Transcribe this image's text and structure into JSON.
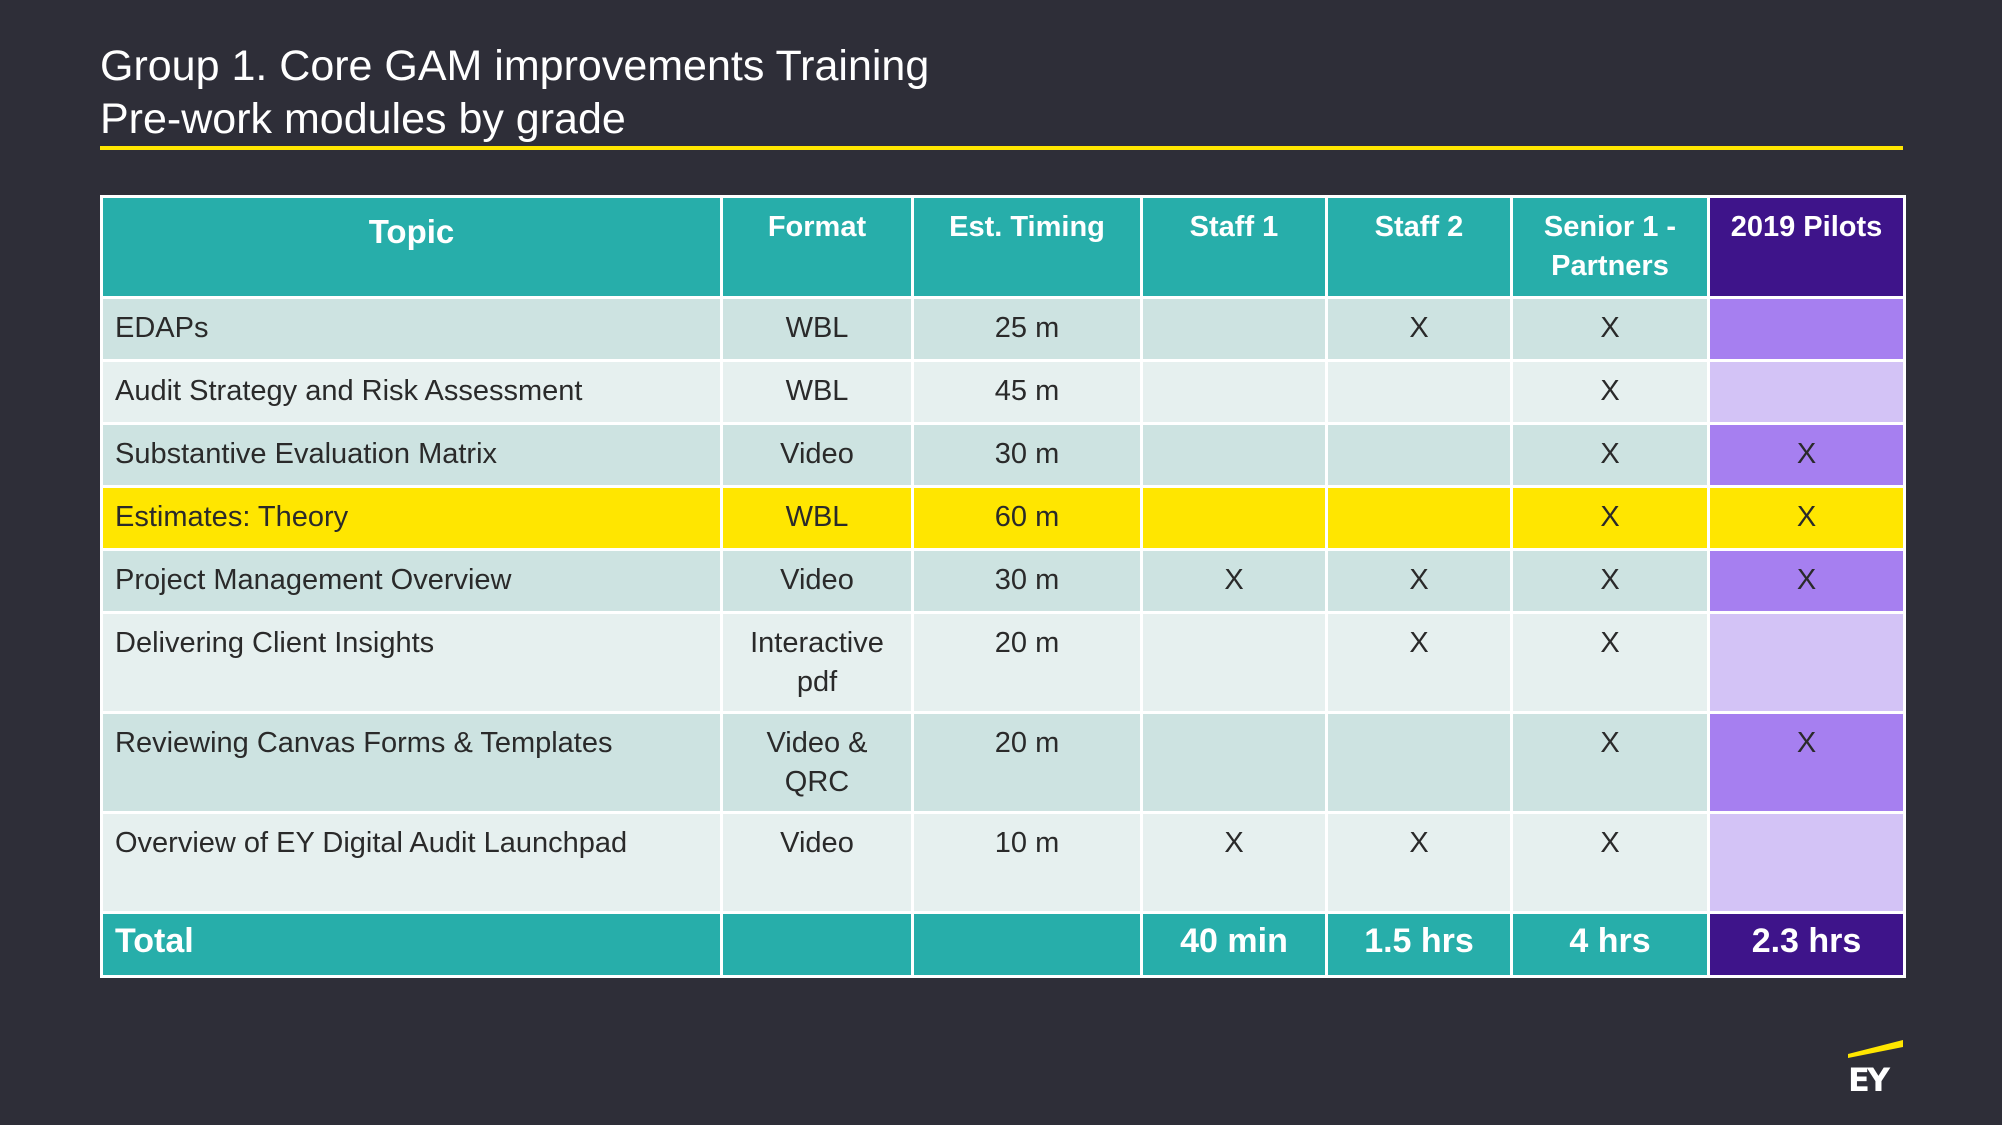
{
  "slide": {
    "title_line1": "Group 1. Core GAM improvements Training",
    "title_line2": "Pre-work  modules by grade"
  },
  "table": {
    "headers": {
      "topic": "Topic",
      "format": "Format",
      "timing": "Est. Timing",
      "staff1": "Staff 1",
      "staff2": "Staff 2",
      "senior": "Senior 1 - Partners",
      "pilots": "2019 Pilots"
    },
    "rows": [
      {
        "topic": "EDAPs",
        "format": "WBL",
        "timing": "25 m",
        "staff1": "",
        "staff2": "X",
        "senior": "X",
        "pilots": ""
      },
      {
        "topic": "Audit Strategy and Risk Assessment",
        "format": "WBL",
        "timing": "45 m",
        "staff1": "",
        "staff2": "",
        "senior": "X",
        "pilots": ""
      },
      {
        "topic": "Substantive Evaluation Matrix",
        "format": "Video",
        "timing": "30 m",
        "staff1": "",
        "staff2": "",
        "senior": "X",
        "pilots": "X"
      },
      {
        "topic": "Estimates: Theory",
        "format": "WBL",
        "timing": "60 m",
        "staff1": "",
        "staff2": "",
        "senior": "X",
        "pilots": "X"
      },
      {
        "topic": "Project Management Overview",
        "format": "Video",
        "timing": "30 m",
        "staff1": "X",
        "staff2": "X",
        "senior": "X",
        "pilots": "X"
      },
      {
        "topic": "Delivering Client Insights",
        "format": "Interactive pdf",
        "timing": "20 m",
        "staff1": "",
        "staff2": "X",
        "senior": "X",
        "pilots": ""
      },
      {
        "topic": "Reviewing Canvas Forms & Templates",
        "format": "Video & QRC",
        "timing": "20 m",
        "staff1": "",
        "staff2": "",
        "senior": "X",
        "pilots": "X"
      },
      {
        "topic": "Overview of EY Digital Audit Launchpad",
        "format": "Video",
        "timing": "10 m",
        "staff1": "X",
        "staff2": "X",
        "senior": "X",
        "pilots": ""
      }
    ],
    "total": {
      "label": "Total",
      "format": "",
      "timing": "",
      "staff1": "40 min",
      "staff2": "1.5 hrs",
      "senior": "4 hrs",
      "pilots": "2.3 hrs"
    }
  },
  "colors": {
    "background": "#2e2e38",
    "header_teal": "#27aeaa",
    "pilot_purple": "#3e148a",
    "highlight_yellow": "#ffe600"
  },
  "logo": {
    "text": "EY"
  }
}
